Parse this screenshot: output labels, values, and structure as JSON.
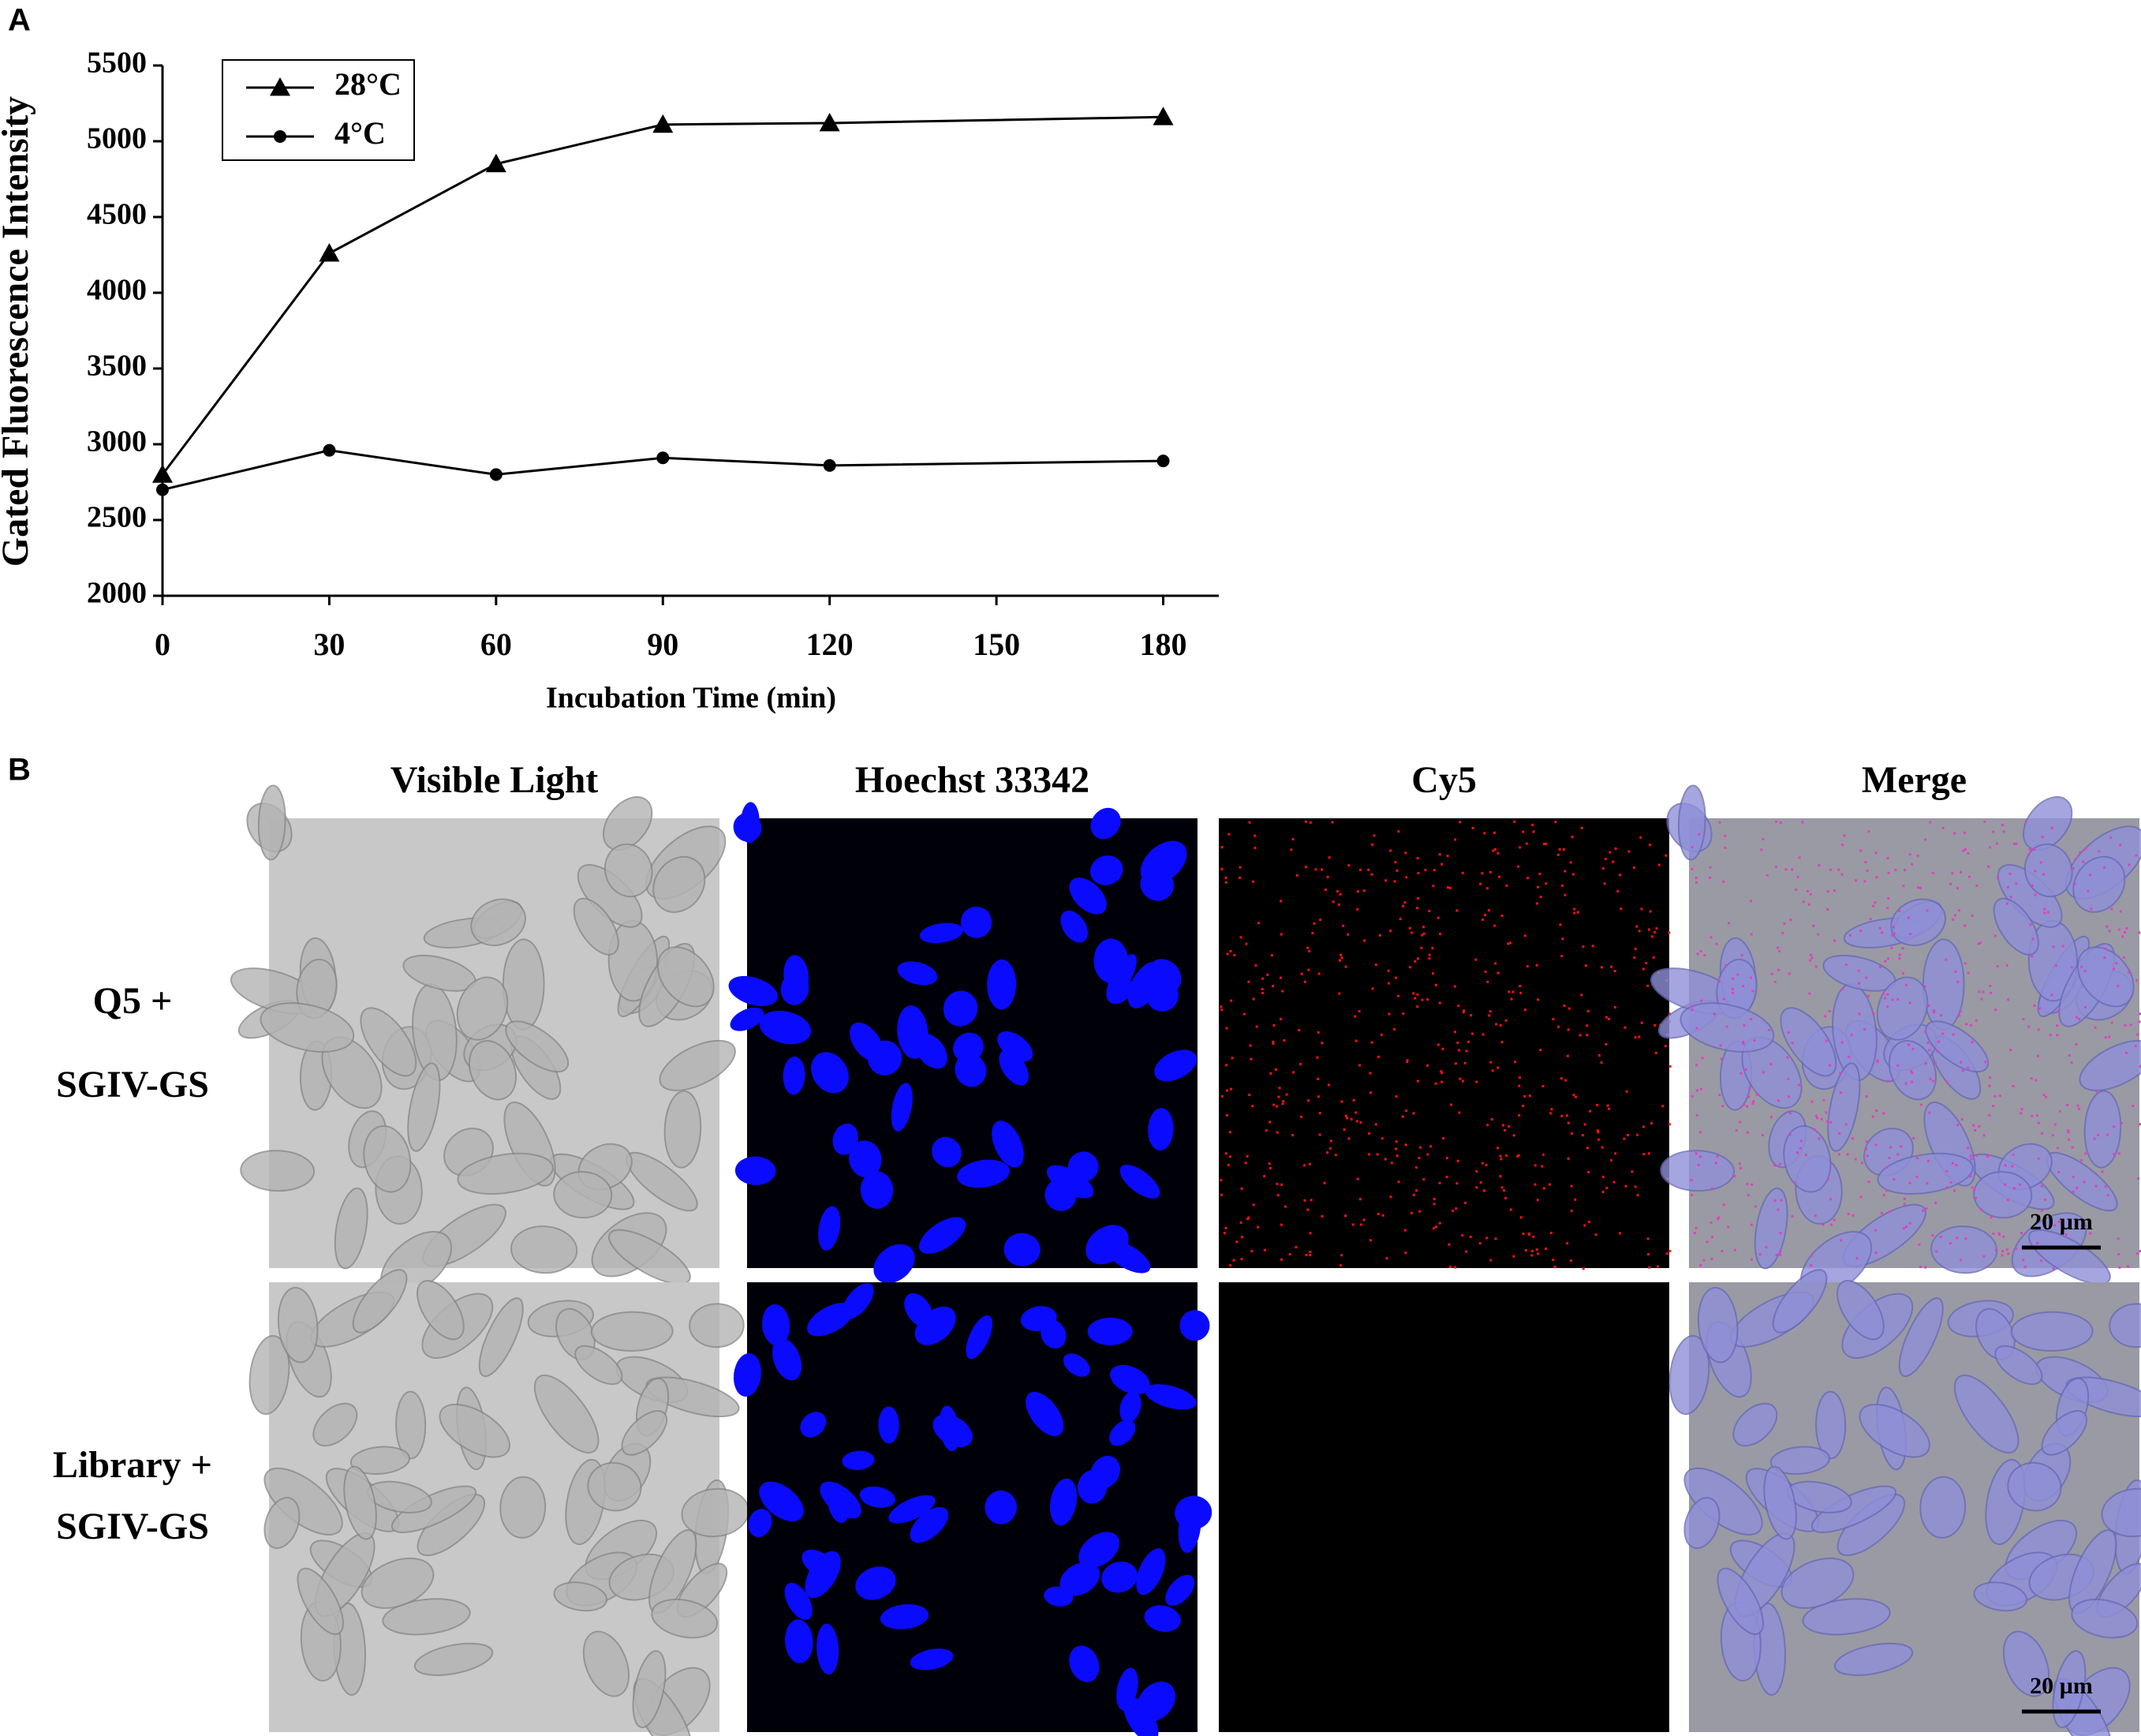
{
  "chart_data": {
    "type": "line",
    "panel_label": "A",
    "x_label": "Incubation Time (min)",
    "y_label": "Gated Fluorescence Intensity",
    "x": [
      0,
      30,
      60,
      90,
      120,
      180
    ],
    "series": [
      {
        "name": "28°C",
        "color": "#000000",
        "marker": "triangle",
        "values": [
          2800,
          4260,
          4850,
          5110,
          5120,
          5160
        ]
      },
      {
        "name": "4°C",
        "color": "#000000",
        "marker": "circle",
        "values": [
          2700,
          2960,
          2800,
          2910,
          2860,
          2890
        ]
      }
    ],
    "xlim": [
      0,
      190
    ],
    "xticks": [
      0,
      30,
      60,
      90,
      120,
      150,
      180
    ],
    "ylim": [
      2000,
      5500
    ],
    "yticks": [
      2000,
      2500,
      3000,
      3500,
      4000,
      4500,
      5000,
      5500
    ],
    "grid": false,
    "legend": "upper left"
  },
  "panel_b": {
    "panel_label": "B",
    "column_labels": [
      "Visible Light",
      "Hoechst 33342",
      "Cy5",
      "Merge"
    ],
    "row_labels": [
      [
        "Q5 +",
        "SGIV-GS"
      ],
      [
        "Library +",
        "SGIV-GS"
      ]
    ],
    "scale_bar_labels": [
      "20 µm",
      "20 µm"
    ]
  }
}
